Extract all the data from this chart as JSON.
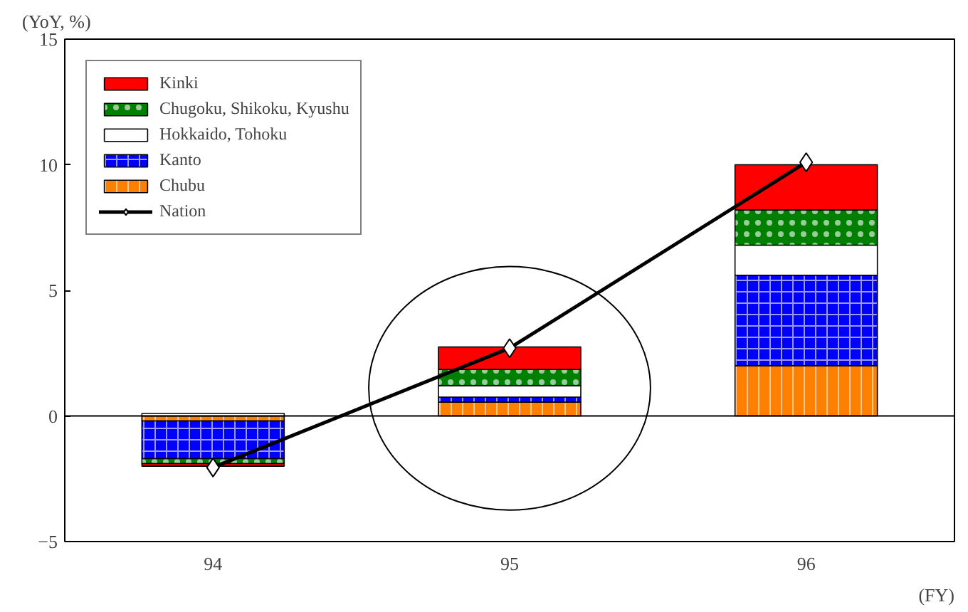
{
  "chart_data": {
    "type": "bar",
    "stacked": true,
    "categories": [
      "94",
      "95",
      "96"
    ],
    "series": [
      {
        "name": "Chubu",
        "color": "#ff8000",
        "values": [
          -0.2,
          0.55,
          2.0
        ]
      },
      {
        "name": "Kanto",
        "color": "#0000ff",
        "values": [
          -1.5,
          0.2,
          3.6
        ]
      },
      {
        "name": "Hokkaido, Tohoku",
        "color": "#ffffff",
        "values": [
          0.1,
          0.45,
          1.2
        ]
      },
      {
        "name": "Chugoku, Shikoku, Kyushu",
        "color": "#008000",
        "values": [
          -0.2,
          0.65,
          1.4
        ]
      },
      {
        "name": "Kinki",
        "color": "#ff0000",
        "values": [
          -0.1,
          0.9,
          1.8
        ]
      },
      {
        "name": "Nation",
        "type": "line",
        "color": "#000000",
        "marker": "diamond",
        "values": [
          -2.05,
          2.7,
          10.1
        ]
      }
    ],
    "ylabel": "(YoY, %)",
    "xlabel": "(FY)",
    "ylim": [
      -5,
      15
    ],
    "yticks": [
      -5,
      0,
      5,
      10,
      15
    ],
    "ref_lines": [
      {
        "axis": "y",
        "value": 0,
        "label": null
      }
    ],
    "grid": false,
    "legend": "top left"
  }
}
